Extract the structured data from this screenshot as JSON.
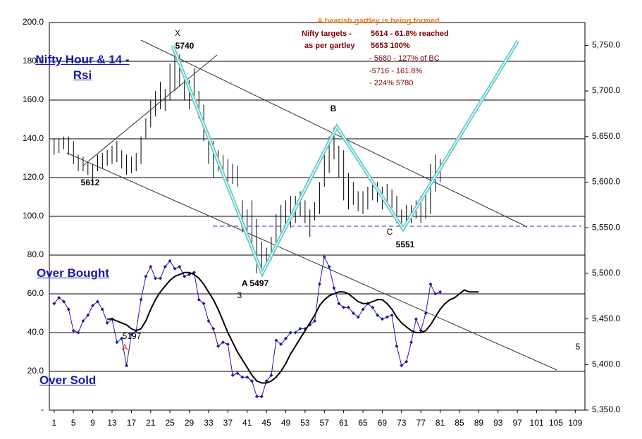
{
  "chart_data": {
    "type": "line",
    "title": "Nifty Hour & 14 -Rsi",
    "labels": [
      "Over Bought",
      "Over Sold"
    ],
    "annotations": [
      "A bearish gartley is being formed .",
      "Nifty targets -",
      "5614 - 61.8% reached",
      "as per gartley",
      "5653 100%",
      "- 5680 - 127% of BC",
      "-5716 - 161.8%",
      "- 224% 5780",
      "X",
      "5740",
      "B",
      "C",
      "5551",
      "A 5497",
      "3",
      "5612",
      "5197",
      "A",
      "5"
    ],
    "x": [
      1,
      2,
      3,
      4,
      5,
      6,
      7,
      8,
      9,
      10,
      11,
      12,
      13,
      14,
      15,
      16,
      17,
      18,
      19,
      20,
      21,
      22,
      23,
      24,
      25,
      26,
      27,
      28,
      29,
      30,
      31,
      32,
      33,
      34,
      35,
      36,
      37,
      38,
      39,
      40,
      41,
      42,
      43,
      44,
      45,
      46,
      47,
      48,
      49,
      50,
      51,
      52,
      53,
      54,
      55,
      56,
      57,
      58,
      59,
      60,
      61,
      62,
      63,
      64,
      65,
      66,
      67,
      68,
      69,
      70,
      71,
      72,
      73,
      74,
      75,
      76,
      77,
      78,
      79,
      80,
      81,
      82,
      83,
      84,
      85,
      86,
      87,
      88,
      89
    ],
    "xlim": [
      0,
      111
    ],
    "xticks": [
      1,
      5,
      9,
      13,
      17,
      21,
      25,
      29,
      33,
      37,
      41,
      45,
      49,
      53,
      57,
      61,
      65,
      69,
      73,
      77,
      81,
      85,
      89,
      93,
      97,
      101,
      105,
      109
    ],
    "ylim": [
      0,
      200
    ],
    "yticks": [
      {
        "value": 0,
        "label": "-"
      },
      {
        "value": 20,
        "label": "20.0"
      },
      {
        "value": 40,
        "label": "40.0"
      },
      {
        "value": 60,
        "label": "60.0"
      },
      {
        "value": 80,
        "label": "80.0"
      },
      {
        "value": 100,
        "label": "100.0"
      },
      {
        "value": 120,
        "label": "120.0"
      },
      {
        "value": 140,
        "label": "140.0"
      },
      {
        "value": 160,
        "label": "160.0"
      },
      {
        "value": 180,
        "label": "180.0"
      },
      {
        "value": 200,
        "label": "200.0"
      }
    ],
    "y2lim": [
      5350,
      5775
    ],
    "y2ticks": [
      {
        "value": 5350,
        "label": "5,350.0"
      },
      {
        "value": 5400,
        "label": "5,400.0"
      },
      {
        "value": 5450,
        "label": "5,450.0"
      },
      {
        "value": 5500,
        "label": "5,500.0"
      },
      {
        "value": 5550,
        "label": "5,550.0"
      },
      {
        "value": 5600,
        "label": "5,600.0"
      },
      {
        "value": 5650,
        "label": "5,650.0"
      },
      {
        "value": 5700,
        "label": "5,700.0"
      },
      {
        "value": 5750,
        "label": "5,750.0"
      }
    ],
    "grid": true,
    "series": [
      {
        "color": "#1a1aa6",
        "markers": true,
        "values": [
          55,
          58,
          56,
          52,
          41,
          40,
          46,
          49,
          54,
          56,
          52,
          45,
          47,
          35,
          37,
          23,
          39,
          41,
          57,
          69,
          74,
          68,
          68,
          74,
          77,
          73,
          74,
          69,
          70,
          71,
          57,
          55,
          46,
          42,
          33,
          35,
          34,
          18,
          19,
          17,
          17,
          15,
          7,
          7,
          15,
          18,
          36,
          34,
          37,
          40,
          40,
          42,
          42,
          44,
          46,
          65,
          79,
          74,
          63,
          55,
          53,
          53,
          50,
          48,
          52,
          55,
          53,
          49,
          47,
          48,
          49,
          33,
          23,
          25,
          35,
          47,
          41,
          50,
          65,
          60,
          61,
          null,
          null,
          null,
          null,
          null,
          null,
          null,
          null
        ]
      },
      {
        "color": "#000000",
        "markers": false,
        "values": [
          null,
          null,
          null,
          null,
          null,
          null,
          null,
          null,
          null,
          null,
          null,
          47,
          47,
          46,
          45,
          44,
          42,
          41,
          42,
          46,
          52,
          57,
          61,
          64,
          67,
          69,
          70,
          71,
          71,
          70,
          68,
          65,
          61,
          57,
          52,
          46,
          40,
          35,
          30,
          26,
          22,
          18,
          15,
          14,
          14,
          15,
          17,
          20,
          24,
          29,
          33,
          37,
          41,
          45,
          49,
          54,
          57,
          59,
          60,
          61,
          61,
          60,
          58,
          56,
          55,
          55,
          56,
          57,
          57,
          55,
          52,
          48,
          45,
          43,
          41,
          40,
          40,
          41,
          44,
          48,
          52,
          55,
          57,
          58,
          60,
          62,
          61,
          61,
          61
        ]
      }
    ],
    "price": {
      "axis": "y2",
      "color": "#000000",
      "low": [
        5630,
        5632,
        5636,
        5630,
        5620,
        5612,
        5612,
        5608,
        5602,
        5612,
        5615,
        5618,
        5620,
        5622,
        5615,
        5608,
        5610,
        5612,
        5620,
        5648,
        5660,
        5672,
        5680,
        5678,
        5690,
        5700,
        5705,
        5690,
        5680,
        5690,
        5670,
        5645,
        5620,
        5605,
        5612,
        5610,
        5600,
        5598,
        5595,
        5545,
        5540,
        5530,
        5500,
        5505,
        5510,
        5515,
        5530,
        5545,
        5550,
        5550,
        5555,
        5562,
        5555,
        5540,
        5558,
        5565,
        5595,
        5610,
        5625,
        5605,
        5580,
        5570,
        5575,
        5568,
        5565,
        5570,
        5580,
        5578,
        5570,
        5575,
        5572,
        5555,
        5550,
        5553,
        5555,
        5560,
        5555,
        5560,
        5565,
        5590,
        5600,
        null,
        null,
        null,
        null,
        null,
        null,
        null,
        null
      ],
      "high": [
        5648,
        5648,
        5650,
        5650,
        5645,
        5630,
        5628,
        5622,
        5620,
        5630,
        5632,
        5635,
        5640,
        5645,
        5635,
        5630,
        5628,
        5632,
        5650,
        5670,
        5690,
        5700,
        5710,
        5702,
        5730,
        5740,
        5740,
        5720,
        5712,
        5725,
        5700,
        5685,
        5655,
        5645,
        5635,
        5630,
        5625,
        5620,
        5618,
        5580,
        5570,
        5580,
        5560,
        5535,
        5528,
        5540,
        5565,
        5575,
        5580,
        5585,
        5585,
        5590,
        5580,
        5570,
        5578,
        5600,
        5630,
        5650,
        5660,
        5640,
        5635,
        5610,
        5600,
        5590,
        5590,
        5595,
        5600,
        5600,
        5595,
        5598,
        5592,
        5585,
        5570,
        5575,
        5575,
        5580,
        5585,
        5590,
        5620,
        5630,
        5625,
        null,
        null,
        null,
        null,
        null,
        null,
        null,
        null
      ]
    }
  }
}
